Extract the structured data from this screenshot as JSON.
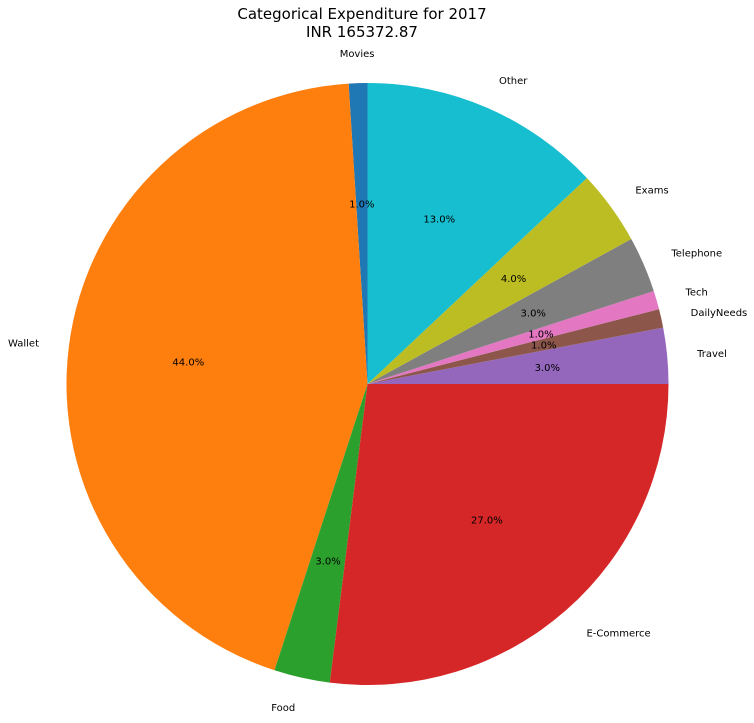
{
  "chart_data": {
    "type": "pie",
    "title": "Categorical Expenditure for 2017",
    "subtitle": "INR 165372.87",
    "start_angle_deg": 90,
    "direction": "counterclockwise",
    "slices": [
      {
        "label": "Movies",
        "value": 1.0,
        "pct_label": "1.0%",
        "color": "#1f77b4"
      },
      {
        "label": "Wallet",
        "value": 44.0,
        "pct_label": "44.0%",
        "color": "#ff7f0e"
      },
      {
        "label": "Food",
        "value": 3.0,
        "pct_label": "3.0%",
        "color": "#2ca02c"
      },
      {
        "label": "E-Commerce",
        "value": 27.0,
        "pct_label": "27.0%",
        "color": "#d62728"
      },
      {
        "label": "Travel",
        "value": 3.0,
        "pct_label": "3.0%",
        "color": "#9467bd"
      },
      {
        "label": "DailyNeeds",
        "value": 1.0,
        "pct_label": "1.0%",
        "color": "#8c564b"
      },
      {
        "label": "Tech",
        "value": 1.0,
        "pct_label": "1.0%",
        "color": "#e377c2"
      },
      {
        "label": "Telephone",
        "value": 3.0,
        "pct_label": "3.0%",
        "color": "#7f7f7f"
      },
      {
        "label": "Exams",
        "value": 4.0,
        "pct_label": "4.0%",
        "color": "#bcbd22"
      },
      {
        "label": "Other",
        "value": 13.0,
        "pct_label": "13.0%",
        "color": "#17becf"
      }
    ]
  }
}
